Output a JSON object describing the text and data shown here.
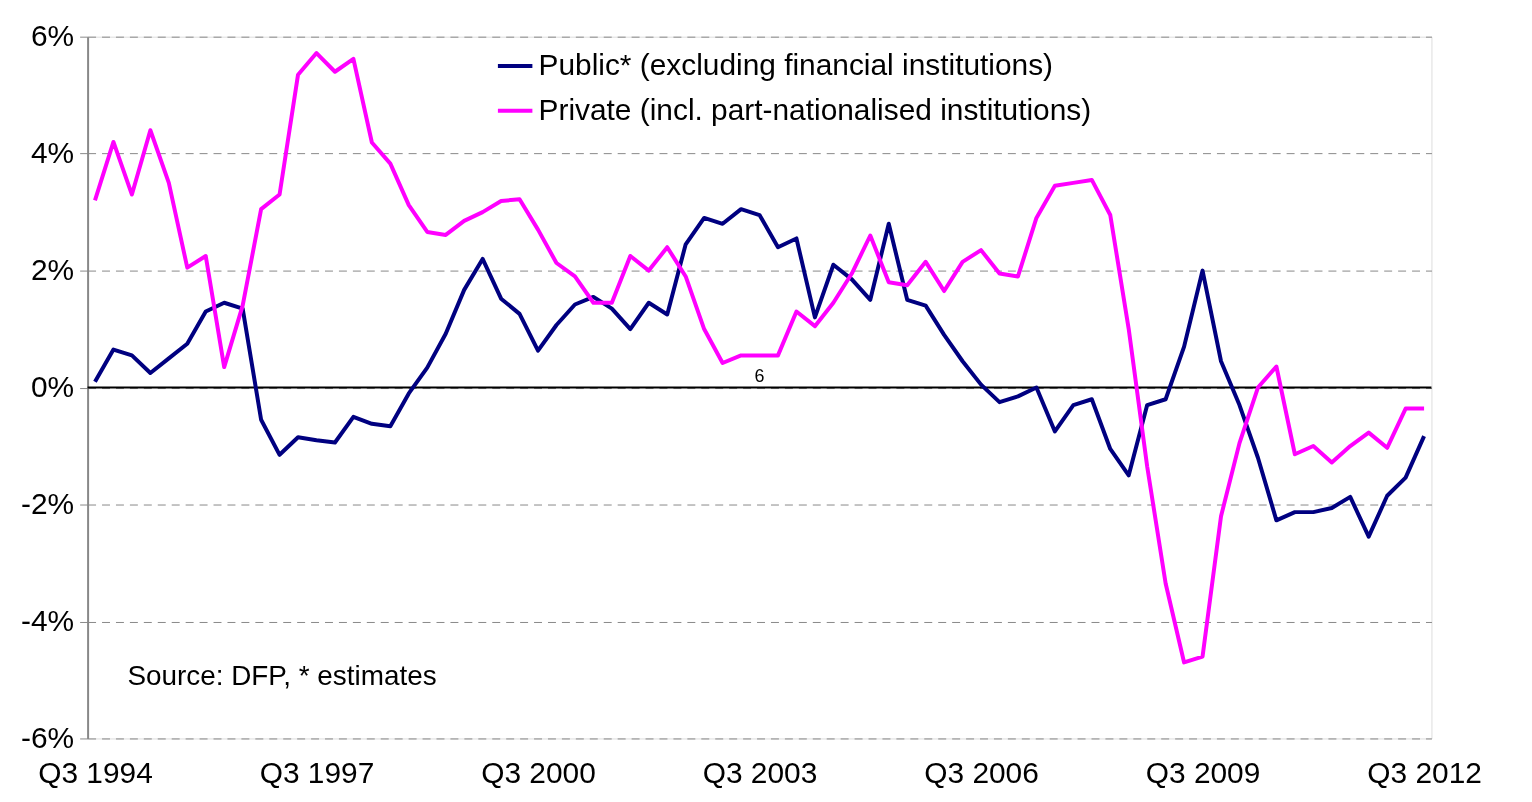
{
  "chart_data": {
    "type": "line",
    "categories": [
      "Q3 1994",
      null,
      null,
      null,
      null,
      null,
      null,
      null,
      null,
      null,
      null,
      null,
      "Q3 1997",
      null,
      null,
      null,
      null,
      null,
      null,
      null,
      null,
      null,
      null,
      null,
      "Q3 2000",
      null,
      null,
      null,
      null,
      null,
      null,
      null,
      null,
      null,
      null,
      null,
      "Q3 2003",
      null,
      null,
      null,
      null,
      null,
      null,
      null,
      null,
      null,
      null,
      null,
      "Q3 2006",
      null,
      null,
      null,
      null,
      null,
      null,
      null,
      null,
      null,
      null,
      null,
      "Q3 2009",
      null,
      null,
      null,
      null,
      null,
      null,
      null,
      null,
      null,
      null,
      null,
      "Q3 2012"
    ],
    "series": [
      {
        "name": "Public* (excluding financial institutions)",
        "color": "#000080",
        "values": [
          0.1,
          0.65,
          0.55,
          0.25,
          0.5,
          0.75,
          1.3,
          1.45,
          1.35,
          -0.55,
          -1.15,
          -0.85,
          -0.9,
          -0.94,
          -0.5,
          -0.62,
          -0.66,
          -0.1,
          0.34,
          0.92,
          1.67,
          2.2,
          1.52,
          1.26,
          0.63,
          1.07,
          1.42,
          1.55,
          1.35,
          1.0,
          1.45,
          1.25,
          2.45,
          2.9,
          2.8,
          3.05,
          2.95,
          2.4,
          2.55,
          1.2,
          2.1,
          1.85,
          1.5,
          2.8,
          1.5,
          1.4,
          0.9,
          0.45,
          0.05,
          -0.25,
          -0.15,
          0.0,
          -0.75,
          -0.3,
          -0.2,
          -1.05,
          -1.5,
          -0.3,
          -0.2,
          0.7,
          2.0,
          0.45,
          -0.3,
          -1.2,
          -2.27,
          -2.13,
          -2.13,
          -2.06,
          -1.87,
          -2.55,
          -1.85,
          -1.54,
          -0.83
        ]
      },
      {
        "name": "Private (incl. part-nationalised institutions)",
        "color": "#ff00ff",
        "values": [
          3.2,
          4.2,
          3.3,
          4.4,
          3.5,
          2.05,
          2.25,
          0.35,
          1.4,
          3.05,
          3.3,
          5.35,
          5.72,
          5.4,
          5.62,
          4.19,
          3.83,
          3.12,
          2.66,
          2.61,
          2.85,
          3.0,
          3.19,
          3.22,
          2.7,
          2.13,
          1.9,
          1.45,
          1.45,
          2.25,
          2.0,
          2.4,
          1.9,
          1.0,
          0.42,
          0.55,
          0.55,
          0.55,
          1.3,
          1.05,
          1.45,
          1.95,
          2.6,
          1.8,
          1.75,
          2.15,
          1.65,
          2.15,
          2.35,
          1.95,
          1.9,
          2.9,
          3.45,
          3.5,
          3.55,
          2.95,
          1.0,
          -1.35,
          -3.35,
          -4.7,
          -4.6,
          -2.2,
          -0.95,
          0.0,
          0.36,
          -1.14,
          -1.0,
          -1.28,
          -1.0,
          -0.77,
          -1.03,
          -0.36,
          -0.36
        ]
      }
    ],
    "ylim": [
      -6,
      6
    ],
    "yticks": [
      {
        "value": -6,
        "label": "-6%"
      },
      {
        "value": -4,
        "label": "-4%"
      },
      {
        "value": -2,
        "label": "-2%"
      },
      {
        "value": 0,
        "label": "0%"
      },
      {
        "value": 2,
        "label": "2%"
      },
      {
        "value": 4,
        "label": "4%"
      },
      {
        "value": 6,
        "label": "6%"
      }
    ],
    "grid": "y",
    "legend": "top",
    "line_style": "solid",
    "ref_lines": [
      {
        "axis": "y",
        "value": 0,
        "color": "#000000"
      }
    ],
    "annotations": [
      {
        "text": "6",
        "x": "Q3 2003",
        "y": 0
      },
      "Source: DFP, * estimates"
    ]
  }
}
